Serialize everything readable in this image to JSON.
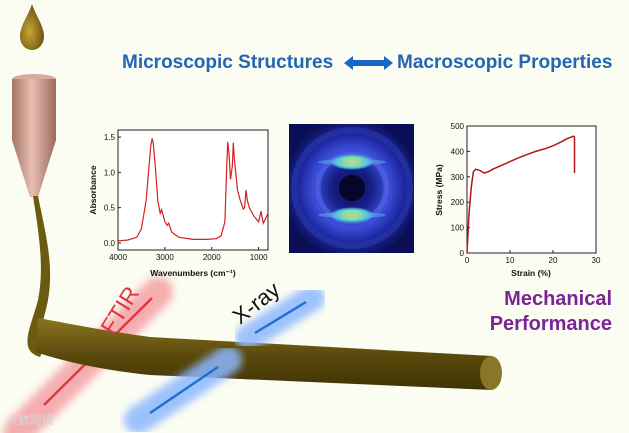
{
  "header": {
    "left": "Microscopic Structures",
    "right": "Macroscopic Properties",
    "connector_icon": "double-arrow-icon"
  },
  "mechanical": {
    "line1": "Mechanical",
    "line2": "Performance"
  },
  "beams": {
    "ftir": "FTIR",
    "xray": "X-ray"
  },
  "watermark": "大数跨境",
  "colors": {
    "header_blue": "#2266b4",
    "mechanical_purple": "#7a2596",
    "fiber": "#6b5a10",
    "nozzle": "#c9998a",
    "ftir_red": "#e0353f",
    "xray_blue": "#1f6fd0",
    "curve_red": "#d22020",
    "stress_curve": "#b01818"
  },
  "chart_data": [
    {
      "type": "line",
      "title": "",
      "xlabel": "Wavenumbers (cm⁻¹)",
      "ylabel": "Absorbance",
      "xlim": [
        4000,
        800
      ],
      "ylim": [
        -0.1,
        1.6
      ],
      "x_ticks": [
        "4000",
        "3000",
        "2000",
        "1000"
      ],
      "y_ticks": [
        "0.0",
        "0.5",
        "1.0",
        "1.5"
      ],
      "series": [
        {
          "x": [
            4000,
            3800,
            3600,
            3500,
            3400,
            3350,
            3300,
            3270,
            3250,
            3200,
            3150,
            3100,
            3070,
            3000,
            2950,
            2920,
            2850,
            2700,
            2400,
            2100,
            1900,
            1800,
            1720,
            1680,
            1660,
            1630,
            1600,
            1560,
            1540,
            1520,
            1450,
            1400,
            1330,
            1300,
            1270,
            1240,
            1200,
            1100,
            1000,
            950,
            900,
            850,
            800
          ],
          "y": [
            0.03,
            0.04,
            0.08,
            0.2,
            0.6,
            1.0,
            1.38,
            1.48,
            1.42,
            1.05,
            0.6,
            0.42,
            0.47,
            0.3,
            0.25,
            0.28,
            0.15,
            0.08,
            0.05,
            0.05,
            0.06,
            0.1,
            0.3,
            1.1,
            1.43,
            1.25,
            0.9,
            1.1,
            1.42,
            1.2,
            0.75,
            0.62,
            0.48,
            0.5,
            0.75,
            0.6,
            0.5,
            0.38,
            0.3,
            0.45,
            0.28,
            0.35,
            0.42
          ]
        }
      ]
    },
    {
      "type": "heatmap",
      "title": "",
      "description_pattern": "fiber diffraction",
      "series": []
    },
    {
      "type": "line",
      "title": "",
      "xlabel": "Strain (%)",
      "ylabel": "Stress (MPa)",
      "xlim": [
        0,
        30
      ],
      "ylim": [
        0,
        500
      ],
      "x_ticks": [
        "0",
        "10",
        "20",
        "30"
      ],
      "y_ticks": [
        "0",
        "100",
        "200",
        "300",
        "400",
        "500"
      ],
      "series": [
        {
          "x": [
            0,
            0.5,
            1.0,
            1.5,
            2.0,
            3,
            4,
            5,
            6,
            8,
            10,
            12,
            14,
            16,
            18,
            20,
            22,
            23,
            24,
            24.8,
            25.0,
            25.0
          ],
          "y": [
            0,
            160,
            260,
            320,
            330,
            325,
            315,
            320,
            330,
            345,
            360,
            375,
            388,
            400,
            410,
            422,
            438,
            448,
            455,
            460,
            455,
            315
          ]
        }
      ]
    }
  ]
}
